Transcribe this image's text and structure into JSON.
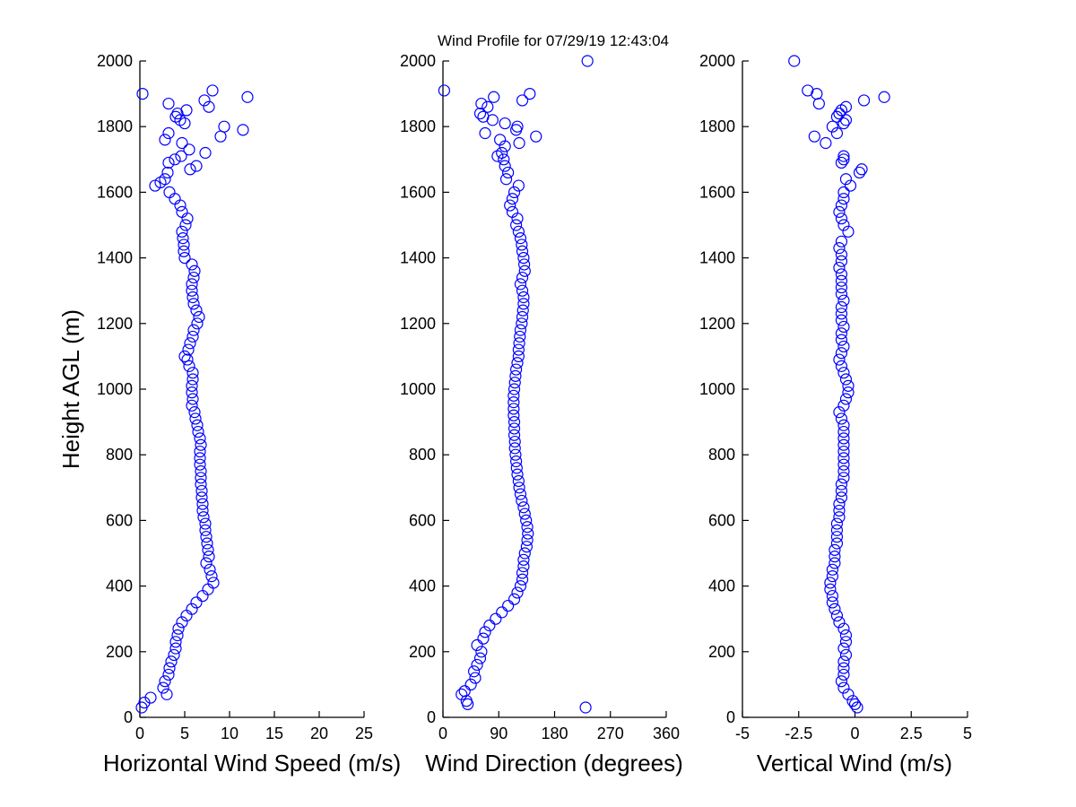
{
  "title": "Wind Profile for  07/29/19 12:43:04",
  "marker_color": "#0000FF",
  "chart_data": [
    {
      "type": "scatter",
      "xlabel": "Horizontal Wind Speed (m/s)",
      "ylabel": "Height AGL (m)",
      "xlim": [
        0,
        25
      ],
      "ylim": [
        0,
        2000
      ],
      "xticks": [
        "0",
        "5",
        "10",
        "15",
        "20",
        "25"
      ],
      "yticks": [
        "0",
        "200",
        "400",
        "600",
        "800",
        "1000",
        "1200",
        "1400",
        "1600",
        "1800",
        "2000"
      ],
      "grid": false,
      "points": [
        [
          0.2,
          30
        ],
        [
          0.5,
          45
        ],
        [
          1.2,
          60
        ],
        [
          3.0,
          70
        ],
        [
          2.6,
          90
        ],
        [
          2.8,
          110
        ],
        [
          3.2,
          130
        ],
        [
          3.3,
          150
        ],
        [
          3.5,
          170
        ],
        [
          3.8,
          190
        ],
        [
          4.0,
          210
        ],
        [
          4.0,
          230
        ],
        [
          4.2,
          250
        ],
        [
          4.3,
          270
        ],
        [
          4.7,
          290
        ],
        [
          5.2,
          310
        ],
        [
          5.8,
          330
        ],
        [
          6.3,
          350
        ],
        [
          7.0,
          370
        ],
        [
          7.6,
          390
        ],
        [
          8.2,
          410
        ],
        [
          8.0,
          430
        ],
        [
          7.8,
          450
        ],
        [
          7.4,
          470
        ],
        [
          7.7,
          490
        ],
        [
          7.6,
          510
        ],
        [
          7.5,
          530
        ],
        [
          7.4,
          550
        ],
        [
          7.3,
          570
        ],
        [
          7.3,
          590
        ],
        [
          7.1,
          610
        ],
        [
          7.0,
          630
        ],
        [
          7.0,
          650
        ],
        [
          6.9,
          670
        ],
        [
          6.9,
          690
        ],
        [
          6.8,
          710
        ],
        [
          6.8,
          730
        ],
        [
          6.8,
          750
        ],
        [
          6.7,
          770
        ],
        [
          6.7,
          790
        ],
        [
          6.7,
          810
        ],
        [
          6.8,
          830
        ],
        [
          6.7,
          850
        ],
        [
          6.5,
          870
        ],
        [
          6.4,
          890
        ],
        [
          6.2,
          910
        ],
        [
          6.1,
          930
        ],
        [
          5.8,
          950
        ],
        [
          5.9,
          970
        ],
        [
          5.8,
          990
        ],
        [
          5.8,
          1010
        ],
        [
          5.9,
          1030
        ],
        [
          5.9,
          1050
        ],
        [
          5.5,
          1070
        ],
        [
          5.3,
          1090
        ],
        [
          5.0,
          1100
        ],
        [
          5.4,
          1120
        ],
        [
          5.6,
          1140
        ],
        [
          5.9,
          1160
        ],
        [
          6.0,
          1180
        ],
        [
          6.4,
          1200
        ],
        [
          6.6,
          1220
        ],
        [
          6.3,
          1240
        ],
        [
          6.0,
          1260
        ],
        [
          5.9,
          1280
        ],
        [
          5.8,
          1300
        ],
        [
          5.8,
          1320
        ],
        [
          6.0,
          1340
        ],
        [
          6.1,
          1360
        ],
        [
          5.8,
          1380
        ],
        [
          5.0,
          1400
        ],
        [
          4.9,
          1420
        ],
        [
          4.9,
          1440
        ],
        [
          4.8,
          1460
        ],
        [
          4.7,
          1480
        ],
        [
          5.1,
          1500
        ],
        [
          5.3,
          1520
        ],
        [
          4.7,
          1540
        ],
        [
          4.5,
          1560
        ],
        [
          3.9,
          1580
        ],
        [
          3.3,
          1600
        ],
        [
          1.7,
          1620
        ],
        [
          2.3,
          1630
        ],
        [
          2.8,
          1640
        ],
        [
          3.1,
          1660
        ],
        [
          5.6,
          1670
        ],
        [
          6.3,
          1680
        ],
        [
          3.2,
          1690
        ],
        [
          3.9,
          1700
        ],
        [
          4.6,
          1710
        ],
        [
          7.3,
          1720
        ],
        [
          5.5,
          1730
        ],
        [
          4.7,
          1750
        ],
        [
          2.8,
          1760
        ],
        [
          9.0,
          1770
        ],
        [
          3.2,
          1780
        ],
        [
          11.5,
          1790
        ],
        [
          9.4,
          1800
        ],
        [
          5.0,
          1810
        ],
        [
          4.5,
          1820
        ],
        [
          4.0,
          1830
        ],
        [
          4.2,
          1840
        ],
        [
          5.2,
          1850
        ],
        [
          7.7,
          1860
        ],
        [
          3.2,
          1870
        ],
        [
          7.2,
          1880
        ],
        [
          12.0,
          1890
        ],
        [
          0.3,
          1900
        ],
        [
          8.1,
          1910
        ]
      ]
    },
    {
      "type": "scatter",
      "xlabel": "Wind Direction (degrees)",
      "xlim": [
        0,
        360
      ],
      "ylim": [
        0,
        2000
      ],
      "xticks": [
        "0",
        "90",
        "180",
        "270",
        "360"
      ],
      "yticks": [
        "0",
        "200",
        "400",
        "600",
        "800",
        "1000",
        "1200",
        "1400",
        "1600",
        "1800",
        "2000"
      ],
      "grid": false,
      "points": [
        [
          230,
          30
        ],
        [
          40,
          40
        ],
        [
          38,
          50
        ],
        [
          30,
          70
        ],
        [
          35,
          80
        ],
        [
          45,
          100
        ],
        [
          52,
          120
        ],
        [
          50,
          140
        ],
        [
          55,
          160
        ],
        [
          60,
          180
        ],
        [
          62,
          200
        ],
        [
          55,
          220
        ],
        [
          65,
          240
        ],
        [
          68,
          260
        ],
        [
          75,
          280
        ],
        [
          85,
          300
        ],
        [
          95,
          320
        ],
        [
          105,
          340
        ],
        [
          115,
          360
        ],
        [
          120,
          380
        ],
        [
          125,
          400
        ],
        [
          128,
          420
        ],
        [
          128,
          440
        ],
        [
          130,
          460
        ],
        [
          130,
          480
        ],
        [
          132,
          500
        ],
        [
          135,
          520
        ],
        [
          136,
          540
        ],
        [
          137,
          560
        ],
        [
          136,
          580
        ],
        [
          134,
          600
        ],
        [
          132,
          620
        ],
        [
          130,
          640
        ],
        [
          127,
          660
        ],
        [
          125,
          680
        ],
        [
          123,
          700
        ],
        [
          122,
          720
        ],
        [
          120,
          740
        ],
        [
          119,
          760
        ],
        [
          118,
          780
        ],
        [
          117,
          800
        ],
        [
          116,
          820
        ],
        [
          116,
          840
        ],
        [
          115,
          860
        ],
        [
          115,
          880
        ],
        [
          115,
          900
        ],
        [
          114,
          920
        ],
        [
          114,
          940
        ],
        [
          114,
          960
        ],
        [
          114,
          980
        ],
        [
          115,
          1000
        ],
        [
          116,
          1020
        ],
        [
          117,
          1040
        ],
        [
          118,
          1060
        ],
        [
          120,
          1080
        ],
        [
          122,
          1100
        ],
        [
          122,
          1120
        ],
        [
          123,
          1140
        ],
        [
          124,
          1160
        ],
        [
          125,
          1180
        ],
        [
          127,
          1200
        ],
        [
          128,
          1220
        ],
        [
          129,
          1240
        ],
        [
          130,
          1260
        ],
        [
          130,
          1280
        ],
        [
          128,
          1300
        ],
        [
          125,
          1320
        ],
        [
          128,
          1340
        ],
        [
          132,
          1360
        ],
        [
          131,
          1380
        ],
        [
          130,
          1400
        ],
        [
          128,
          1420
        ],
        [
          127,
          1440
        ],
        [
          125,
          1460
        ],
        [
          122,
          1480
        ],
        [
          118,
          1500
        ],
        [
          120,
          1520
        ],
        [
          112,
          1540
        ],
        [
          108,
          1560
        ],
        [
          112,
          1580
        ],
        [
          115,
          1600
        ],
        [
          122,
          1620
        ],
        [
          102,
          1640
        ],
        [
          105,
          1660
        ],
        [
          100,
          1680
        ],
        [
          98,
          1700
        ],
        [
          88,
          1710
        ],
        [
          95,
          1720
        ],
        [
          100,
          1740
        ],
        [
          123,
          1750
        ],
        [
          92,
          1760
        ],
        [
          150,
          1770
        ],
        [
          68,
          1780
        ],
        [
          118,
          1790
        ],
        [
          120,
          1800
        ],
        [
          100,
          1810
        ],
        [
          80,
          1820
        ],
        [
          65,
          1830
        ],
        [
          60,
          1840
        ],
        [
          72,
          1860
        ],
        [
          62,
          1870
        ],
        [
          128,
          1880
        ],
        [
          82,
          1890
        ],
        [
          140,
          1900
        ],
        [
          2,
          1910
        ],
        [
          233,
          2000
        ]
      ]
    },
    {
      "type": "scatter",
      "xlabel": "Vertical Wind (m/s)",
      "xlim": [
        -5,
        5
      ],
      "ylim": [
        0,
        2000
      ],
      "xticks": [
        "-5",
        "-2.5",
        "0",
        "2.5",
        "5"
      ],
      "yticks": [
        "0",
        "200",
        "400",
        "600",
        "800",
        "1000",
        "1200",
        "1400",
        "1600",
        "1800",
        "2000"
      ],
      "grid": false,
      "points": [
        [
          0.1,
          30
        ],
        [
          0,
          40
        ],
        [
          -0.1,
          50
        ],
        [
          -0.3,
          70
        ],
        [
          -0.5,
          90
        ],
        [
          -0.6,
          110
        ],
        [
          -0.5,
          130
        ],
        [
          -0.5,
          150
        ],
        [
          -0.5,
          170
        ],
        [
          -0.4,
          190
        ],
        [
          -0.5,
          210
        ],
        [
          -0.4,
          230
        ],
        [
          -0.4,
          250
        ],
        [
          -0.5,
          270
        ],
        [
          -0.7,
          290
        ],
        [
          -0.8,
          310
        ],
        [
          -0.9,
          330
        ],
        [
          -1.0,
          350
        ],
        [
          -1.0,
          370
        ],
        [
          -1.1,
          390
        ],
        [
          -1.1,
          410
        ],
        [
          -1.0,
          430
        ],
        [
          -1.0,
          450
        ],
        [
          -0.9,
          470
        ],
        [
          -0.9,
          490
        ],
        [
          -0.9,
          510
        ],
        [
          -0.8,
          530
        ],
        [
          -0.8,
          550
        ],
        [
          -0.8,
          570
        ],
        [
          -0.8,
          590
        ],
        [
          -0.7,
          610
        ],
        [
          -0.7,
          630
        ],
        [
          -0.7,
          650
        ],
        [
          -0.6,
          670
        ],
        [
          -0.6,
          690
        ],
        [
          -0.6,
          710
        ],
        [
          -0.5,
          730
        ],
        [
          -0.5,
          750
        ],
        [
          -0.5,
          770
        ],
        [
          -0.5,
          790
        ],
        [
          -0.5,
          810
        ],
        [
          -0.5,
          830
        ],
        [
          -0.5,
          850
        ],
        [
          -0.5,
          870
        ],
        [
          -0.5,
          890
        ],
        [
          -0.6,
          910
        ],
        [
          -0.7,
          930
        ],
        [
          -0.5,
          950
        ],
        [
          -0.4,
          970
        ],
        [
          -0.3,
          990
        ],
        [
          -0.3,
          1010
        ],
        [
          -0.4,
          1030
        ],
        [
          -0.5,
          1050
        ],
        [
          -0.6,
          1070
        ],
        [
          -0.7,
          1090
        ],
        [
          -0.6,
          1110
        ],
        [
          -0.5,
          1130
        ],
        [
          -0.6,
          1150
        ],
        [
          -0.6,
          1170
        ],
        [
          -0.5,
          1190
        ],
        [
          -0.6,
          1210
        ],
        [
          -0.6,
          1230
        ],
        [
          -0.6,
          1250
        ],
        [
          -0.5,
          1270
        ],
        [
          -0.6,
          1290
        ],
        [
          -0.6,
          1310
        ],
        [
          -0.6,
          1330
        ],
        [
          -0.6,
          1350
        ],
        [
          -0.7,
          1370
        ],
        [
          -0.6,
          1390
        ],
        [
          -0.6,
          1410
        ],
        [
          -0.7,
          1430
        ],
        [
          -0.6,
          1450
        ],
        [
          -0.3,
          1480
        ],
        [
          -0.5,
          1500
        ],
        [
          -0.6,
          1520
        ],
        [
          -0.7,
          1540
        ],
        [
          -0.6,
          1560
        ],
        [
          -0.5,
          1580
        ],
        [
          -0.5,
          1600
        ],
        [
          -0.2,
          1620
        ],
        [
          -0.4,
          1640
        ],
        [
          0.2,
          1660
        ],
        [
          0.3,
          1670
        ],
        [
          -0.6,
          1690
        ],
        [
          -0.5,
          1700
        ],
        [
          -0.5,
          1710
        ],
        [
          -1.3,
          1750
        ],
        [
          -1.8,
          1770
        ],
        [
          -0.8,
          1780
        ],
        [
          -1.0,
          1800
        ],
        [
          -0.5,
          1810
        ],
        [
          -0.4,
          1820
        ],
        [
          -0.8,
          1830
        ],
        [
          -0.7,
          1840
        ],
        [
          -0.6,
          1850
        ],
        [
          -0.4,
          1860
        ],
        [
          -1.6,
          1870
        ],
        [
          0.4,
          1880
        ],
        [
          1.3,
          1890
        ],
        [
          -1.7,
          1900
        ],
        [
          -2.1,
          1910
        ],
        [
          -2.7,
          2000
        ]
      ]
    }
  ]
}
